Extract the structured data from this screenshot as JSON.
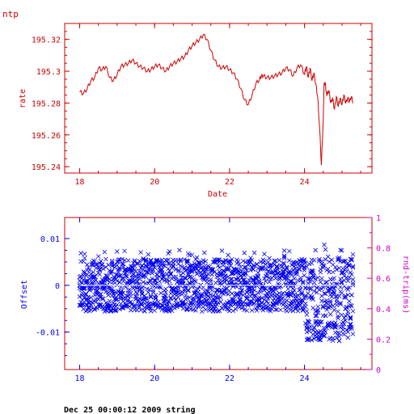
{
  "page": {
    "corner_label": "ntp",
    "footer": "Dec 25 00:00:12 2009 string"
  },
  "colors": {
    "rate": "#cc0000",
    "offset": "#0000ee",
    "rtt_axis": "#cc00cc",
    "frame": "#cc0000"
  },
  "chart_data": [
    {
      "type": "line",
      "ylabel": "rate",
      "xlabel": "Date",
      "xlim": [
        17.6,
        25.8
      ],
      "ylim": [
        195.236,
        195.33
      ],
      "xticks": [
        18,
        20,
        22,
        24
      ],
      "yticks": [
        195.24,
        195.26,
        195.28,
        195.3,
        195.32
      ],
      "ytick_labels": [
        "195.24",
        "195.26",
        "195.28",
        "195.3",
        "195.32"
      ],
      "grid": false,
      "series": [
        {
          "x": [
            18.0,
            18.1,
            18.2,
            18.3,
            18.4,
            18.5,
            18.6,
            18.7,
            18.8,
            18.9,
            19.0,
            19.1,
            19.2,
            19.3,
            19.4,
            19.5,
            19.6,
            19.7,
            19.8,
            19.9,
            20.0,
            20.1,
            20.2,
            20.3,
            20.4,
            20.5,
            20.6,
            20.7,
            20.8,
            20.9,
            21.0,
            21.1,
            21.2,
            21.3,
            21.4,
            21.5,
            21.6,
            21.7,
            21.8,
            21.9,
            22.0,
            22.1,
            22.2,
            22.3,
            22.4,
            22.5,
            22.6,
            22.7,
            22.8,
            22.85,
            22.9,
            23.0,
            23.1,
            23.2,
            23.3,
            23.4,
            23.5,
            23.6,
            23.7,
            23.8,
            23.9,
            24.0,
            24.05,
            24.1,
            24.15,
            24.2,
            24.25,
            24.3,
            24.35,
            24.4,
            24.45,
            24.5,
            24.52,
            24.55,
            24.58,
            24.6,
            24.65,
            24.7,
            24.75,
            24.8,
            24.85,
            24.9,
            24.95,
            25.0,
            25.05,
            25.1,
            25.15,
            25.2,
            25.25,
            25.3
          ],
          "y": [
            195.287,
            195.286,
            195.289,
            195.294,
            195.296,
            195.302,
            195.301,
            195.303,
            195.296,
            195.294,
            195.298,
            195.303,
            195.304,
            195.305,
            195.307,
            195.305,
            195.303,
            195.302,
            195.3,
            195.301,
            195.303,
            195.304,
            195.302,
            195.3,
            195.303,
            195.305,
            195.306,
            195.308,
            195.309,
            195.313,
            195.316,
            195.318,
            195.32,
            195.323,
            195.32,
            195.313,
            195.307,
            195.303,
            195.302,
            195.303,
            195.301,
            195.299,
            195.295,
            195.289,
            195.282,
            195.279,
            195.285,
            195.292,
            195.295,
            195.297,
            195.297,
            195.296,
            195.296,
            195.297,
            195.298,
            195.299,
            195.302,
            195.301,
            195.297,
            195.302,
            195.304,
            195.298,
            195.303,
            195.296,
            195.302,
            195.294,
            195.299,
            195.292,
            195.284,
            195.266,
            195.241,
            195.27,
            195.291,
            195.293,
            195.287,
            195.285,
            195.288,
            195.28,
            195.283,
            195.276,
            195.284,
            195.278,
            195.283,
            195.279,
            195.285,
            195.28,
            195.283,
            195.281,
            195.284,
            195.28
          ]
        }
      ]
    },
    {
      "type": "scatter",
      "ylabel": "Offset",
      "y2label": "rnd-trip(ms)",
      "xlim": [
        17.6,
        25.8
      ],
      "ylim": [
        -0.018,
        0.0145
      ],
      "y2lim": [
        0,
        1
      ],
      "xticks": [
        18,
        20,
        22,
        24
      ],
      "yticks": [
        -0.01,
        0,
        0.01
      ],
      "ytick_labels": [
        "-0.01",
        "0",
        "0.01"
      ],
      "y2ticks": [
        0,
        0.2,
        0.4,
        0.6,
        0.8,
        1
      ],
      "y2tick_labels": [
        "0",
        "0.2",
        "0.4",
        "0.6",
        "0.8",
        "1"
      ],
      "grid": false,
      "series": [
        {
          "x_start": 18.0,
          "x_end": 25.3,
          "x_step": 0.0333,
          "baseline": 0.0,
          "band": [
            {
              "x_from": 18.0,
              "x_to": 24.0,
              "low": -0.008,
              "high": 0.008
            },
            {
              "x_from": 24.0,
              "x_to": 25.3,
              "low": -0.016,
              "high": 0.0095
            }
          ]
        }
      ]
    }
  ]
}
